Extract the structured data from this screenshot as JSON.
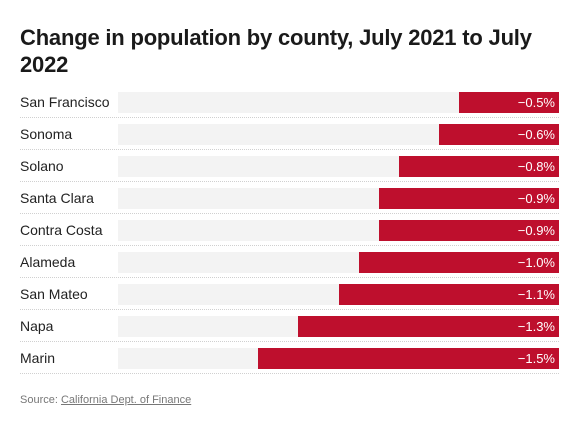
{
  "chart_data": {
    "type": "bar",
    "orientation": "horizontal",
    "title": "Change in population by county, July 2021 to July 2022",
    "categories": [
      "San Francisco",
      "Sonoma",
      "Solano",
      "Santa Clara",
      "Contra Costa",
      "Alameda",
      "San Mateo",
      "Napa",
      "Marin"
    ],
    "values": [
      -0.5,
      -0.6,
      -0.8,
      -0.9,
      -0.9,
      -1.0,
      -1.1,
      -1.3,
      -1.5
    ],
    "value_labels": [
      "−0.5%",
      "−0.6%",
      "−0.8%",
      "−0.9%",
      "−0.9%",
      "−1.0%",
      "−1.1%",
      "−1.3%",
      "−1.5%"
    ],
    "xlim": [
      -2.2,
      0
    ],
    "colors": {
      "bar": "#be0f2d",
      "track": "#f3f3f3"
    }
  },
  "source": {
    "prefix": "Source:",
    "link_text": "California Dept. of Finance"
  }
}
